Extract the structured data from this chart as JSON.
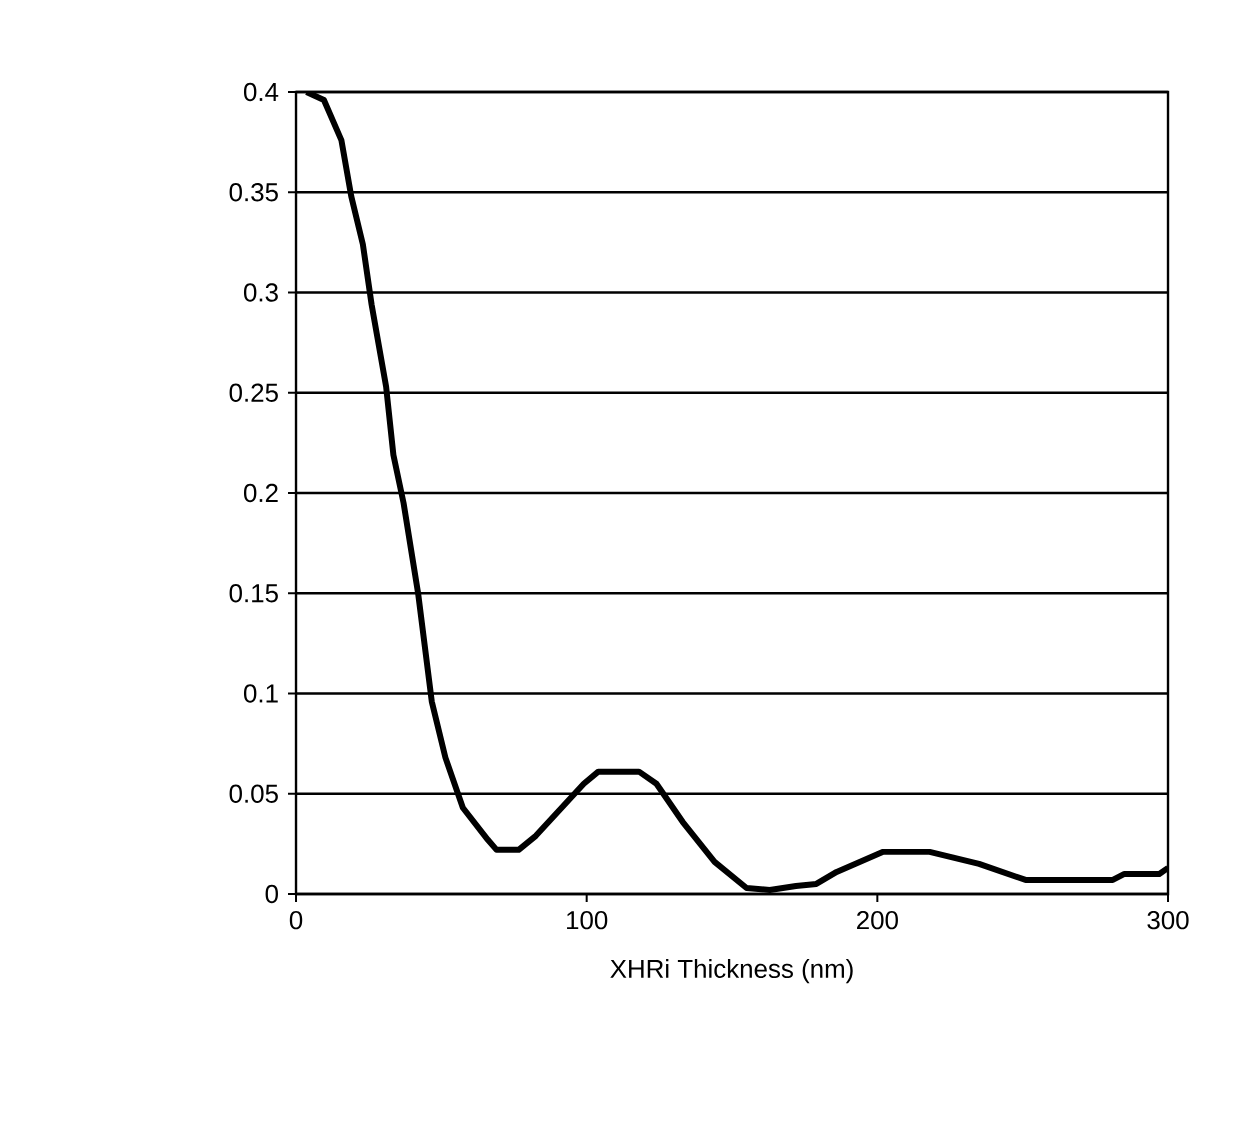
{
  "chart_data": {
    "type": "line",
    "xlabel": "XHRi Thickness (nm)",
    "x": [
      3.6,
      9.6,
      15.6,
      19,
      23,
      26,
      31,
      33.5,
      37,
      42,
      46.7,
      51.4,
      57.4,
      66,
      69,
      76.6,
      82.5,
      99,
      104,
      118,
      124,
      133,
      144,
      155,
      163,
      172,
      179,
      186,
      202,
      218,
      235,
      251,
      281,
      285,
      297,
      300
    ],
    "series": [
      {
        "color": "#000000",
        "values": [
          0.4,
          0.396,
          0.376,
          0.348,
          0.324,
          0.294,
          0.253,
          0.219,
          0.195,
          0.15,
          0.096,
          0.068,
          0.043,
          0.027,
          0.022,
          0.022,
          0.029,
          0.055,
          0.061,
          0.061,
          0.055,
          0.036,
          0.016,
          0.003,
          0.002,
          0.004,
          0.005,
          0.011,
          0.021,
          0.021,
          0.015,
          0.007,
          0.007,
          0.01,
          0.01,
          0.013
        ]
      }
    ],
    "xlim": [
      0,
      300
    ],
    "xticks": [
      0,
      100,
      200,
      300
    ],
    "ylim": [
      0,
      0.4
    ],
    "yticks": [
      0,
      0.05,
      0.1,
      0.15,
      0.2,
      0.25,
      0.3,
      0.35,
      0.4
    ],
    "grid": "y",
    "marker": "none",
    "line_style": "solid"
  }
}
